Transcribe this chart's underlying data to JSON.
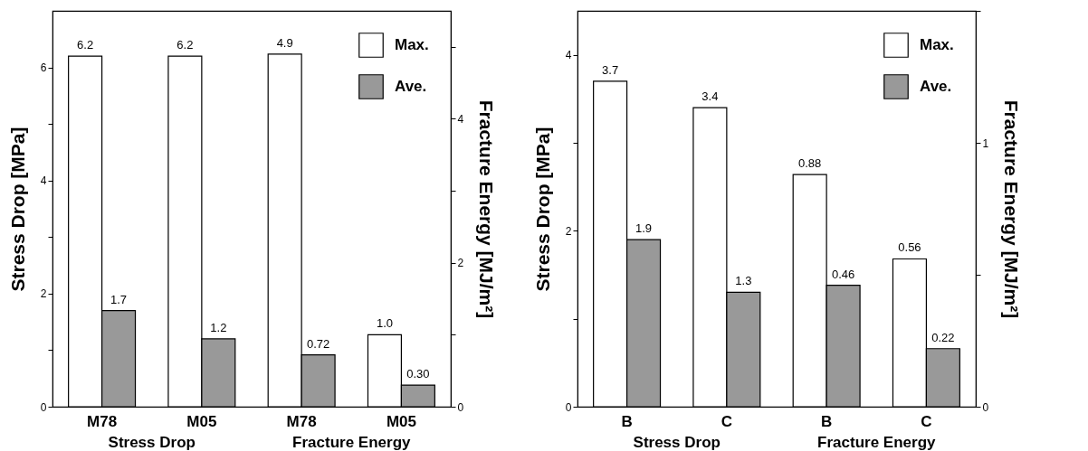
{
  "chart_data": [
    {
      "type": "bar",
      "categories": [
        "M78",
        "M05",
        "M78",
        "M05"
      ],
      "ylabel": "Stress Drop [MPa]",
      "y2label": "Fracture Energy [MJ/m²]",
      "ylim": [
        0,
        7.0
      ],
      "yticks": [
        0,
        {
          "value": 1,
          "label": null
        },
        2,
        {
          "value": 3,
          "label": null
        },
        4,
        {
          "value": 5,
          "label": null
        },
        6
      ],
      "y2lim": [
        0,
        5.5
      ],
      "y2ticks": [
        0,
        {
          "value": 1,
          "label": null
        },
        2,
        {
          "value": 3,
          "label": null
        },
        4,
        {
          "value": 5,
          "label": null
        }
      ],
      "series": [
        {
          "name": "Max.",
          "color": "#ffffff",
          "values": [
            6.2,
            6.2,
            null,
            null
          ],
          "value_labels": [
            "6.2",
            "6.2",
            null,
            null
          ]
        },
        {
          "name": "Ave.",
          "color": "#999999",
          "values": [
            1.7,
            1.2,
            null,
            null
          ],
          "value_labels": [
            "1.7",
            "1.2",
            null,
            null
          ]
        },
        {
          "color": "#ffffff",
          "axis": "y2",
          "values": [
            null,
            null,
            4.9,
            1.0
          ],
          "value_labels": [
            null,
            null,
            "4.9",
            "1.0"
          ]
        },
        {
          "color": "#999999",
          "axis": "y2",
          "values": [
            null,
            null,
            0.72,
            0.3
          ],
          "value_labels": [
            null,
            null,
            "0.72",
            "0.30"
          ]
        }
      ],
      "annotations": [
        "Stress Drop",
        "Fracture Energy"
      ],
      "legend": "top right",
      "grid": false
    },
    {
      "type": "bar",
      "categories": [
        "B",
        "C",
        "B",
        "C"
      ],
      "ylabel": "Stress Drop [MPa]",
      "y2label": "Fracture Energy [MJ/m²]",
      "ylim": [
        0,
        4.5
      ],
      "yticks": [
        0,
        {
          "value": 1,
          "label": null
        },
        2,
        {
          "value": 3,
          "label": null
        },
        4
      ],
      "y2lim": [
        0,
        1.5
      ],
      "y2ticks": [
        0,
        {
          "value": 0.5,
          "label": null
        },
        1,
        {
          "value": 1.5,
          "label": null
        }
      ],
      "series": [
        {
          "name": "Max.",
          "color": "#ffffff",
          "values": [
            3.7,
            3.4,
            null,
            null
          ],
          "value_labels": [
            "3.7",
            "3.4",
            null,
            null
          ]
        },
        {
          "name": "Ave.",
          "color": "#999999",
          "values": [
            1.9,
            1.3,
            null,
            null
          ],
          "value_labels": [
            "1.9",
            "1.3",
            null,
            null
          ]
        },
        {
          "color": "#ffffff",
          "axis": "y2",
          "values": [
            null,
            null,
            0.88,
            0.56
          ],
          "value_labels": [
            null,
            null,
            "0.88",
            "0.56"
          ]
        },
        {
          "color": "#999999",
          "axis": "y2",
          "values": [
            null,
            null,
            0.46,
            0.22
          ],
          "value_labels": [
            null,
            null,
            "0.46",
            "0.22"
          ]
        }
      ],
      "annotations": [
        "Stress Drop",
        "Fracture Energy"
      ],
      "legend": "top right",
      "grid": false
    }
  ]
}
